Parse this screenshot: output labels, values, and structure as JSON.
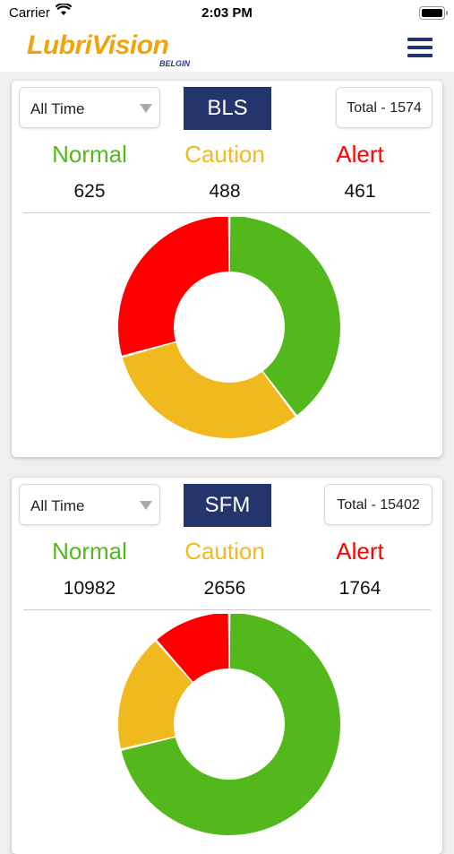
{
  "status_bar": {
    "carrier": "Carrier",
    "time": "2:03 PM"
  },
  "app": {
    "logo": "LubriVision",
    "logo_sub": "BELGIN",
    "menu_icon": "hamburger-icon"
  },
  "colors": {
    "normal": "#52b81c",
    "caution": "#f0ba1f",
    "alert": "#ff0000",
    "badge": "#24356e"
  },
  "cards": [
    {
      "filter": "All Time",
      "code": "BLS",
      "total": "Total - 1574",
      "labels": {
        "normal": "Normal",
        "caution": "Caution",
        "alert": "Alert"
      },
      "values": {
        "normal": "625",
        "caution": "488",
        "alert": "461"
      },
      "chart": [
        625,
        488,
        461
      ]
    },
    {
      "filter": "All Time",
      "code": "SFM",
      "total": "Total - 15402",
      "labels": {
        "normal": "Normal",
        "caution": "Caution",
        "alert": "Alert"
      },
      "values": {
        "normal": "10982",
        "caution": "2656",
        "alert": "1764"
      },
      "chart": [
        10982,
        2656,
        1764
      ]
    }
  ]
}
